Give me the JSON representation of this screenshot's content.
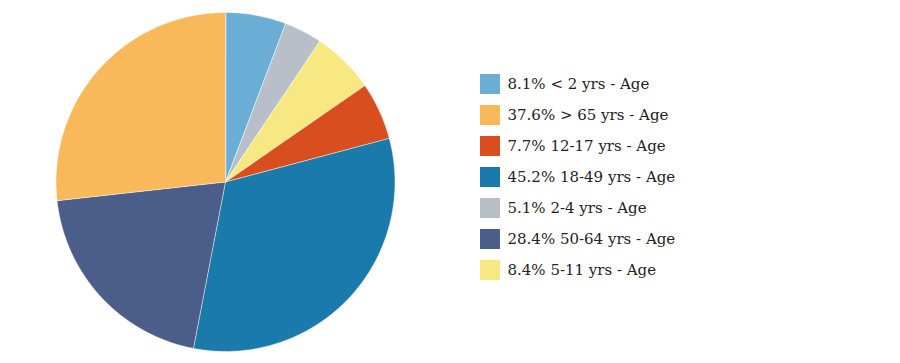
{
  "chart_data": {
    "type": "pie",
    "categories": [
      "8.1% < 2 yrs - Age",
      "5.1% 2-4 yrs - Age",
      "8.4% 5-11 yrs - Age",
      "7.7% 12-17 yrs - Age",
      "45.2% 18-49 yrs - Age",
      "28.4% 50-64 yrs - Age",
      "37.6% > 65 yrs - Age"
    ],
    "values": [
      8.1,
      5.1,
      8.4,
      7.7,
      45.2,
      28.4,
      37.6
    ],
    "colors": [
      "#6aaed6",
      "#b8bfc8",
      "#f7e882",
      "#d94e1f",
      "#1a7aab",
      "#4b5e8a",
      "#f9b95a"
    ],
    "legend": "right",
    "legend_order": [
      0,
      6,
      3,
      4,
      1,
      5,
      2
    ]
  }
}
